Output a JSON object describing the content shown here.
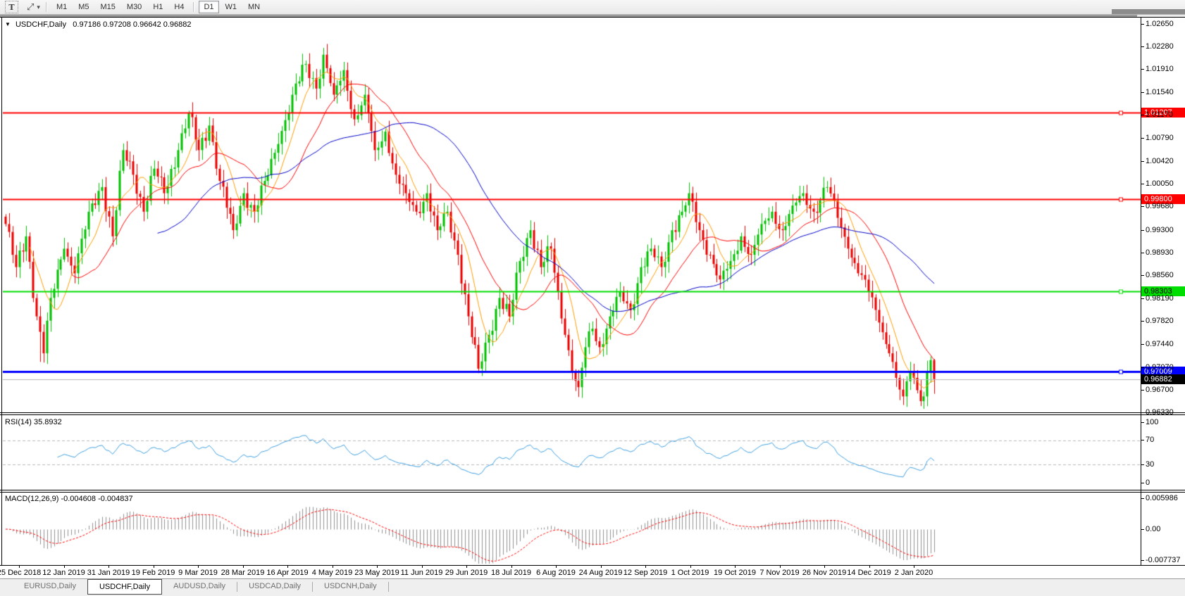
{
  "toolbar": {
    "text_tool_label": "T",
    "arrows_icon": "⤢",
    "dropdown_caret": "▾",
    "timeframes": [
      "M1",
      "M5",
      "M15",
      "M30",
      "H1",
      "H4",
      "D1",
      "W1",
      "MN"
    ],
    "active_timeframe": "D1"
  },
  "chart_header": {
    "menu_icon": "▼",
    "symbol": "USDCHF,Daily",
    "ohlc_text": "0.97186 0.97208 0.96642 0.96882"
  },
  "chart_data": {
    "type": "candlestick",
    "symbol": "USDCHF",
    "timeframe": "Daily",
    "current_bar": {
      "open": 0.97186,
      "high": 0.97208,
      "low": 0.96642,
      "close": 0.96882
    },
    "y_axis_ticks": [
      "1.02650",
      "1.02280",
      "1.01910",
      "1.01540",
      "1.01170",
      "1.00790",
      "1.00420",
      "1.00050",
      "0.99680",
      "0.99300",
      "0.98930",
      "0.98560",
      "0.98190",
      "0.97820",
      "0.97440",
      "0.97070",
      "0.96700",
      "0.96330"
    ],
    "x_axis_dates": [
      "25 Dec 2018",
      "12 Jan 2019",
      "31 Jan 2019",
      "19 Feb 2019",
      "9 Mar 2019",
      "28 Mar 2019",
      "16 Apr 2019",
      "4 May 2019",
      "23 May 2019",
      "11 Jun 2019",
      "29 Jun 2019",
      "18 Jul 2019",
      "6 Aug 2019",
      "24 Aug 2019",
      "12 Sep 2019",
      "1 Oct 2019",
      "19 Oct 2019",
      "7 Nov 2019",
      "26 Nov 2019",
      "14 Dec 2019",
      "2 Jan 2020"
    ],
    "price_lines": [
      {
        "price": "1.01207",
        "value": 1.01207,
        "color": "#ff0000",
        "width": 2,
        "text_color": "#ffffff"
      },
      {
        "price": "0.99800",
        "value": 0.998,
        "color": "#ff0000",
        "width": 2,
        "text_color": "#ffffff"
      },
      {
        "price": "0.98303",
        "value": 0.98303,
        "color": "#00dd00",
        "width": 2,
        "text_color": "#000000"
      },
      {
        "price": "0.97009",
        "value": 0.97009,
        "color": "#0000ff",
        "width": 3,
        "text_color": "#ffffff"
      }
    ],
    "current_price": {
      "price": "0.96882",
      "value": 0.96882,
      "line_color": "#b4b4b4",
      "label_bg": "#000000",
      "text_color": "#ffffff"
    },
    "candles": {
      "count": 270,
      "bull_color": "#00c000",
      "bear_color": "#e80000",
      "close_waypoints": [
        [
          0,
          0.994
        ],
        [
          3,
          0.987
        ],
        [
          6,
          0.992
        ],
        [
          9,
          0.979
        ],
        [
          11,
          0.973
        ],
        [
          13,
          0.982
        ],
        [
          17,
          0.99
        ],
        [
          20,
          0.986
        ],
        [
          24,
          0.996
        ],
        [
          28,
          1.0
        ],
        [
          31,
          0.992
        ],
        [
          34,
          1.006
        ],
        [
          37,
          1.002
        ],
        [
          40,
          0.996
        ],
        [
          43,
          1.003
        ],
        [
          46,
          0.999
        ],
        [
          50,
          1.006
        ],
        [
          53,
          1.012
        ],
        [
          56,
          1.006
        ],
        [
          59,
          1.01
        ],
        [
          62,
          1.001
        ],
        [
          66,
          0.993
        ],
        [
          69,
          0.999
        ],
        [
          72,
          0.996
        ],
        [
          75,
          1.001
        ],
        [
          79,
          1.007
        ],
        [
          83,
          1.015
        ],
        [
          87,
          1.02
        ],
        [
          90,
          1.016
        ],
        [
          92,
          1.0215
        ],
        [
          95,
          1.015
        ],
        [
          98,
          1.019
        ],
        [
          101,
          1.011
        ],
        [
          104,
          1.015
        ],
        [
          107,
          1.006
        ],
        [
          110,
          1.009
        ],
        [
          113,
          1.002
        ],
        [
          116,
          0.999
        ],
        [
          119,
          0.996
        ],
        [
          122,
          0.999
        ],
        [
          125,
          0.993
        ],
        [
          128,
          0.996
        ],
        [
          131,
          0.989
        ],
        [
          134,
          0.979
        ],
        [
          137,
          0.9705
        ],
        [
          140,
          0.976
        ],
        [
          143,
          0.982
        ],
        [
          146,
          0.979
        ],
        [
          149,
          0.988
        ],
        [
          152,
          0.993
        ],
        [
          155,
          0.987
        ],
        [
          158,
          0.99
        ],
        [
          160,
          0.983
        ],
        [
          162,
          0.976
        ],
        [
          164,
          0.97
        ],
        [
          166,
          0.9675
        ],
        [
          168,
          0.974
        ],
        [
          170,
          0.977
        ],
        [
          172,
          0.974
        ],
        [
          175,
          0.979
        ],
        [
          178,
          0.983
        ],
        [
          181,
          0.98
        ],
        [
          184,
          0.987
        ],
        [
          187,
          0.99
        ],
        [
          190,
          0.987
        ],
        [
          193,
          0.993
        ],
        [
          196,
          0.996
        ],
        [
          198,
          0.999
        ],
        [
          201,
          0.993
        ],
        [
          204,
          0.989
        ],
        [
          207,
          0.985
        ],
        [
          210,
          0.988
        ],
        [
          213,
          0.992
        ],
        [
          216,
          0.989
        ],
        [
          219,
          0.994
        ],
        [
          222,
          0.996
        ],
        [
          225,
          0.993
        ],
        [
          228,
          0.997
        ],
        [
          231,
          0.999
        ],
        [
          234,
          0.996
        ],
        [
          238,
          1.0
        ],
        [
          241,
          0.995
        ],
        [
          244,
          0.99
        ],
        [
          247,
          0.986
        ],
        [
          250,
          0.983
        ],
        [
          253,
          0.978
        ],
        [
          256,
          0.973
        ],
        [
          258,
          0.969
        ],
        [
          260,
          0.966
        ],
        [
          262,
          0.97
        ],
        [
          264,
          0.967
        ],
        [
          266,
          0.966
        ],
        [
          267,
          0.97
        ],
        [
          268,
          0.9719
        ],
        [
          269,
          0.96882
        ]
      ],
      "wick_overrides": {
        "10": {
          "low": 0.9716
        },
        "53": {
          "high": 1.0124
        },
        "92": {
          "high": 1.0226
        },
        "166": {
          "low": 0.9659
        },
        "260": {
          "low": 0.9646
        }
      }
    },
    "moving_averages": [
      {
        "name": "fast",
        "period": 8,
        "color": "#ff9c00"
      },
      {
        "name": "mid",
        "period": 20,
        "color": "#ff0000"
      },
      {
        "name": "slow",
        "period": 45,
        "color": "#0000c8"
      }
    ],
    "rsi": {
      "label": "RSI(14) 35.8932",
      "period": 14,
      "current_value": "35.8932",
      "ticks": [
        "100",
        "70",
        "30",
        "0"
      ],
      "dashed_levels": [
        70,
        30
      ],
      "line_color": "#3f9fdf",
      "level_color": "#b8b8b8"
    },
    "macd": {
      "label": "MACD(12,26,9) -0.004608 -0.004837",
      "macd_value": "-0.004608",
      "signal_value": "-0.004837",
      "ticks": [
        "0.005986",
        "0.00",
        "-0.007737"
      ],
      "histogram_color": "#909090",
      "signal_color": "#ff0000"
    }
  },
  "tabs": {
    "items": [
      "EURUSD,Daily",
      "USDCHF,Daily",
      "AUDUSD,Daily",
      "USDCAD,Daily",
      "USDCNH,Daily"
    ],
    "active": "USDCHF,Daily"
  }
}
